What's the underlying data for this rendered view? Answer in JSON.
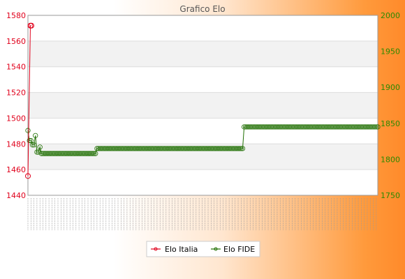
{
  "chart_data": {
    "type": "line",
    "title": "Grafico Elo",
    "xlabel": "",
    "y_left": {
      "range": [
        1440,
        1580
      ],
      "ticks": [
        1440,
        1460,
        1480,
        1500,
        1520,
        1540,
        1560,
        1580
      ],
      "color": "#e0001b"
    },
    "y_right": {
      "range": [
        1750,
        2000
      ],
      "ticks": [
        1750,
        1800,
        1850,
        1900,
        1950,
        2000
      ],
      "color": "#2a8a00"
    },
    "grid": true,
    "legend_position": "bottom",
    "series": [
      {
        "name": "Elo Italia",
        "axis": "left",
        "color": "#e0001b",
        "marker": "circle",
        "values": [
          1455,
          1572,
          1572
        ]
      },
      {
        "name": "Elo FIDE",
        "axis": "right",
        "color": "#1e6e00",
        "marker": "circle",
        "values": [
          1840,
          1826,
          1826,
          1820,
          1820,
          1833,
          1810,
          1810,
          1817,
          1808,
          1808,
          1808,
          1808,
          1808,
          1808,
          1808,
          1808,
          1808,
          1808,
          1808,
          1808,
          1808,
          1808,
          1808,
          1808,
          1808,
          1808,
          1808,
          1808,
          1808,
          1808,
          1808,
          1808,
          1808,
          1808,
          1808,
          1808,
          1808,
          1808,
          1808,
          1808,
          1808,
          1808,
          1808,
          1808,
          1808,
          1815,
          1815,
          1815,
          1815,
          1815,
          1815,
          1815,
          1815,
          1815,
          1815,
          1815,
          1815,
          1815,
          1815,
          1815,
          1815,
          1815,
          1815,
          1815,
          1815,
          1815,
          1815,
          1815,
          1815,
          1815,
          1815,
          1815,
          1815,
          1815,
          1815,
          1815,
          1815,
          1815,
          1815,
          1815,
          1815,
          1815,
          1815,
          1815,
          1815,
          1815,
          1815,
          1815,
          1815,
          1815,
          1815,
          1815,
          1815,
          1815,
          1815,
          1815,
          1815,
          1815,
          1815,
          1815,
          1815,
          1815,
          1815,
          1815,
          1815,
          1815,
          1815,
          1815,
          1815,
          1815,
          1815,
          1815,
          1815,
          1815,
          1815,
          1815,
          1815,
          1815,
          1815,
          1815,
          1815,
          1815,
          1815,
          1815,
          1815,
          1815,
          1815,
          1815,
          1815,
          1815,
          1815,
          1815,
          1815,
          1815,
          1815,
          1815,
          1815,
          1815,
          1815,
          1815,
          1815,
          1815,
          1815,
          1845,
          1845,
          1845,
          1845,
          1845,
          1845,
          1845,
          1845,
          1845,
          1845,
          1845,
          1845,
          1845,
          1845,
          1845,
          1845,
          1845,
          1845,
          1845,
          1845,
          1845,
          1845,
          1845,
          1845,
          1845,
          1845,
          1845,
          1845,
          1845,
          1845,
          1845,
          1845,
          1845,
          1845,
          1845,
          1845,
          1845,
          1845,
          1845,
          1845,
          1845,
          1845,
          1845,
          1845,
          1845,
          1845,
          1845,
          1845,
          1845,
          1845,
          1845,
          1845,
          1845,
          1845,
          1845,
          1845,
          1845,
          1845,
          1845,
          1845,
          1845,
          1845,
          1845,
          1845,
          1845,
          1845,
          1845,
          1845,
          1845,
          1845,
          1845,
          1845,
          1845,
          1845,
          1845,
          1845,
          1845,
          1845,
          1845,
          1845,
          1845,
          1845,
          1845,
          1845,
          1845,
          1845,
          1845,
          1845,
          1845,
          1845
        ]
      }
    ],
    "x_tick_labels_legible": false
  }
}
